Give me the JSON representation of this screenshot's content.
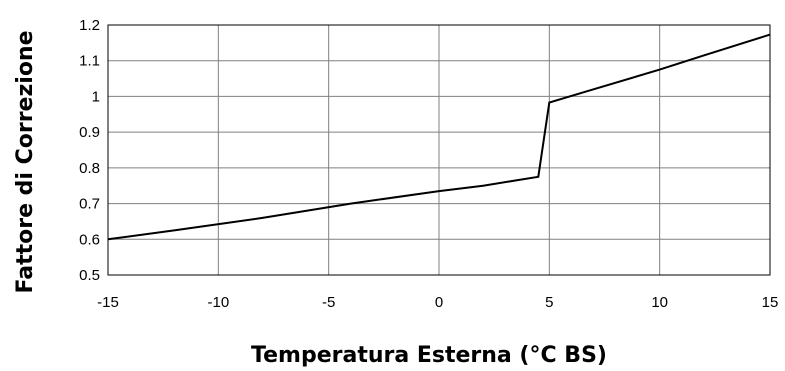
{
  "chart_data": {
    "type": "line",
    "title": "",
    "xlabel": "Temperatura Esterna (°C BS)",
    "ylabel": "Fattore di Correzione",
    "xlim": [
      -15,
      15
    ],
    "ylim": [
      0.5,
      1.2
    ],
    "x_ticks": [
      "-15",
      "-10",
      "-5",
      "0",
      "5",
      "10",
      "15"
    ],
    "y_ticks": [
      "0.5",
      "0.6",
      "0.7",
      "0.8",
      "0.9",
      "1",
      "1.1",
      "1.2"
    ],
    "grid": true,
    "legend": "none",
    "line_color": "#000000",
    "grid_color": "#808080",
    "series": [
      {
        "x": [
          -15,
          -12,
          -8,
          -4,
          0,
          2,
          4.5,
          5,
          7,
          10,
          12,
          15
        ],
        "y": [
          0.6,
          0.625,
          0.66,
          0.7,
          0.735,
          0.75,
          0.775,
          0.983,
          1.02,
          1.075,
          1.115,
          1.173
        ]
      }
    ]
  }
}
